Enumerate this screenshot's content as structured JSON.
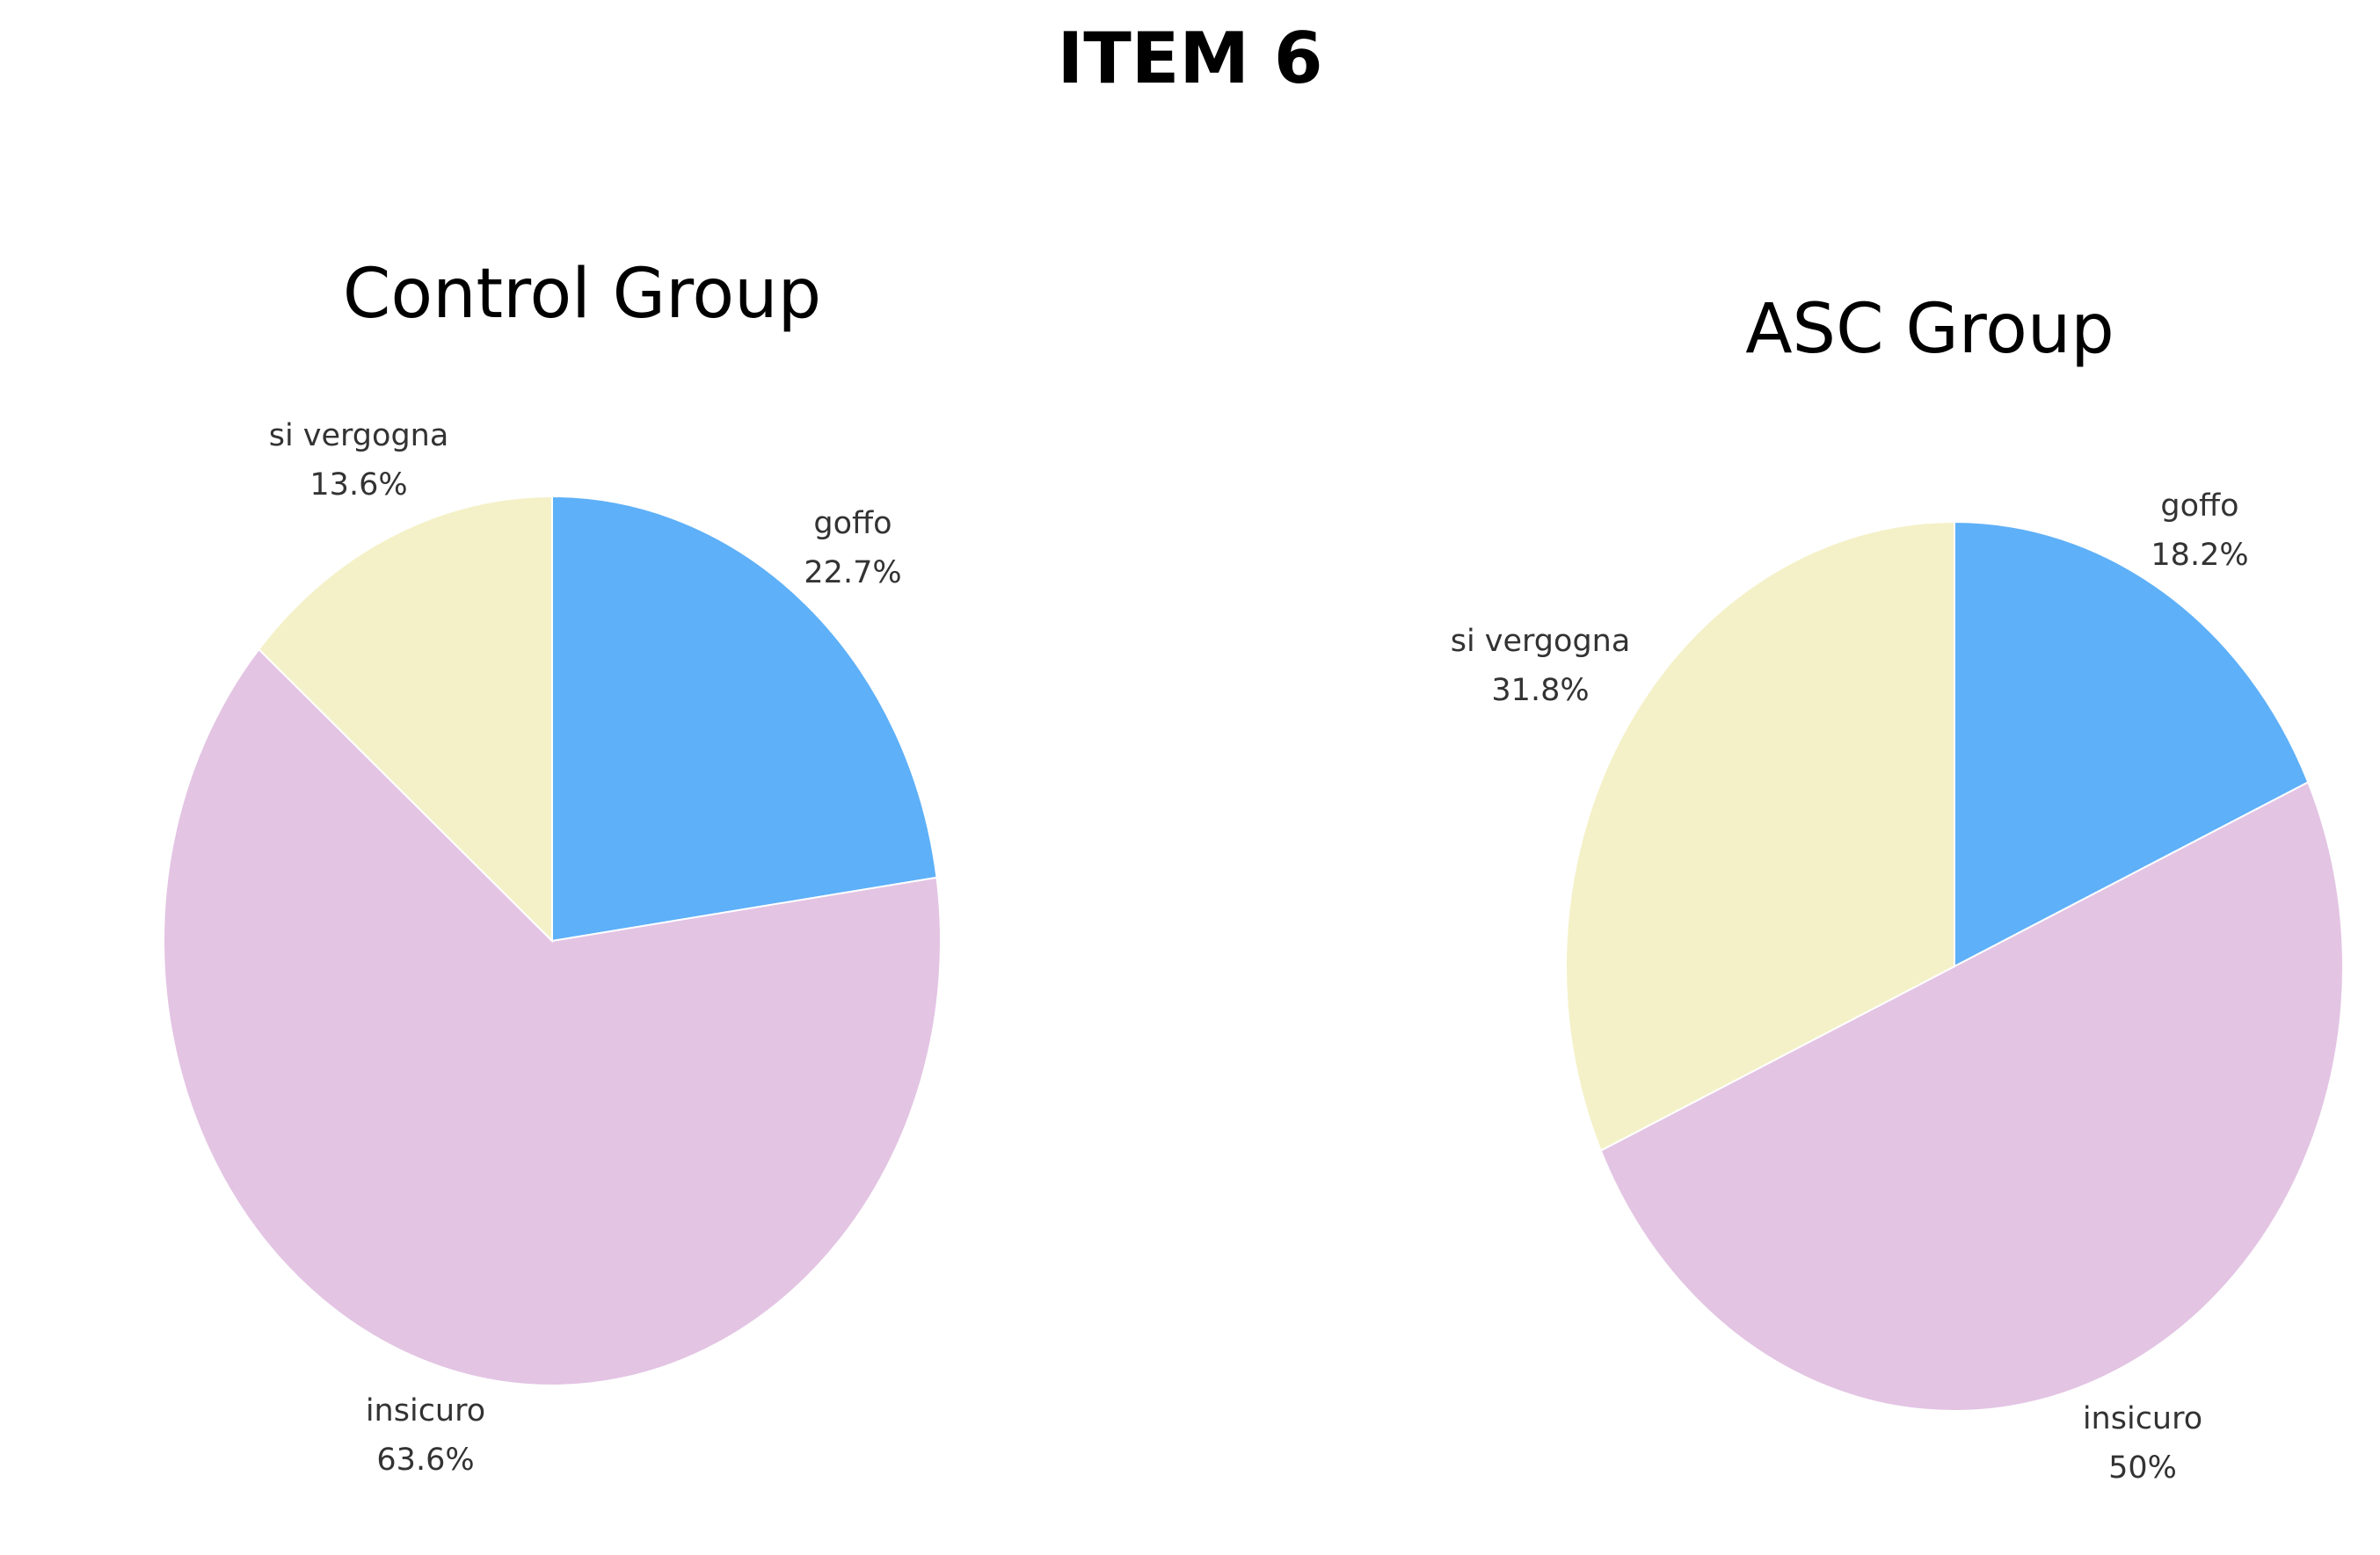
{
  "title": "ITEM 6",
  "colors": {
    "goffo": "#5eb0f8",
    "insicuro": "#e3c4e3",
    "si vergogna": "#f4f1c8"
  },
  "charts": {
    "control": {
      "title": "Control Group",
      "slices": [
        {
          "label": "goffo",
          "pct": "22.7%"
        },
        {
          "label": "insicuro",
          "pct": "63.6%"
        },
        {
          "label": "si vergogna",
          "pct": "13.6%"
        }
      ]
    },
    "asc": {
      "title": "ASC Group",
      "slices": [
        {
          "label": "goffo",
          "pct": "18.2%"
        },
        {
          "label": "insicuro",
          "pct": "50%"
        },
        {
          "label": "si vergogna",
          "pct": "31.8%"
        }
      ]
    }
  },
  "chart_data": [
    {
      "type": "pie",
      "title": "Control Group",
      "suptitle": "ITEM 6",
      "categories": [
        "goffo",
        "insicuro",
        "si vergogna"
      ],
      "values": [
        22.7,
        63.6,
        13.6
      ],
      "colors": [
        "#5eb0f8",
        "#e3c4e3",
        "#f4f1c8"
      ],
      "start_angle": "12 o'clock, clockwise",
      "labels_outside": true
    },
    {
      "type": "pie",
      "title": "ASC Group",
      "suptitle": "ITEM 6",
      "categories": [
        "goffo",
        "insicuro",
        "si vergogna"
      ],
      "values": [
        18.2,
        50,
        31.8
      ],
      "colors": [
        "#5eb0f8",
        "#e3c4e3",
        "#f4f1c8"
      ],
      "start_angle": "12 o'clock, clockwise",
      "labels_outside": true
    }
  ]
}
